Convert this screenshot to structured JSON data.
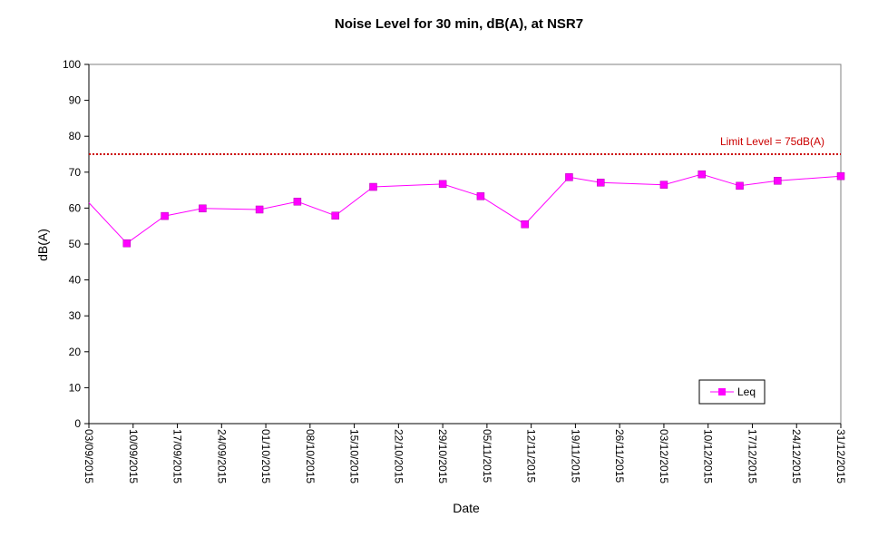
{
  "chart_data": {
    "type": "line",
    "title": "Noise Level for 30 min, dB(A), at NSR7",
    "xlabel": "Date",
    "ylabel": "dB(A)",
    "ylim": [
      0,
      100
    ],
    "yticks": [
      0,
      10,
      20,
      30,
      40,
      50,
      60,
      70,
      80,
      90,
      100
    ],
    "xlim": [
      "03/09/2015",
      "31/12/2015"
    ],
    "xticks": [
      "03/09/2015",
      "10/09/2015",
      "17/09/2015",
      "24/09/2015",
      "01/10/2015",
      "08/10/2015",
      "15/10/2015",
      "22/10/2015",
      "29/10/2015",
      "05/11/2015",
      "12/11/2015",
      "19/11/2015",
      "26/11/2015",
      "03/12/2015",
      "10/12/2015",
      "17/12/2015",
      "24/12/2015",
      "31/12/2015"
    ],
    "grid": false,
    "legend_position": "bottom-right",
    "series": [
      {
        "name": "Leq",
        "color": "#ff00ff",
        "marker": "square",
        "x": [
          "03/09/2015",
          "09/09/2015",
          "15/09/2015",
          "21/09/2015",
          "30/09/2015",
          "06/10/2015",
          "12/10/2015",
          "18/10/2015",
          "29/10/2015",
          "04/11/2015",
          "11/11/2015",
          "18/11/2015",
          "23/11/2015",
          "03/12/2015",
          "09/12/2015",
          "15/12/2015",
          "21/12/2015",
          "31/12/2015"
        ],
        "values": [
          61.5,
          50.2,
          57.8,
          59.9,
          59.6,
          61.8,
          57.9,
          65.9,
          66.7,
          63.3,
          55.5,
          68.6,
          67.1,
          66.5,
          69.4,
          66.2,
          67.6,
          68.9
        ]
      }
    ],
    "reference_line": {
      "label": "Limit Level  = 75dB(A)",
      "value": 75,
      "color": "#cc0000"
    }
  }
}
